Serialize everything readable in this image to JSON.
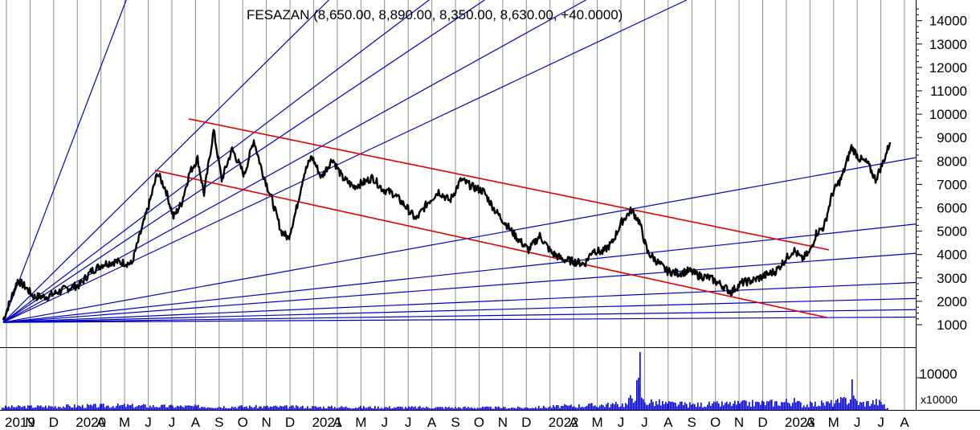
{
  "chart_data": {
    "type": "line",
    "title": "FESAZAN (8,650.00, 8,890.00, 8,350.00, 8,630.00, +40.0000)",
    "ylim": [
      0,
      14800
    ],
    "y_ticks": [
      1000,
      2000,
      3000,
      4000,
      5000,
      6000,
      7000,
      8000,
      9000,
      10000,
      11000,
      12000,
      13000,
      14000
    ],
    "volume_tick": "10000",
    "volume_multiplier": "x10000",
    "x_labels": [
      "2019",
      "N",
      "D",
      "2020",
      "A",
      "M",
      "J",
      "J",
      "A",
      "S",
      "O",
      "N",
      "D",
      "2021",
      "A",
      "M",
      "J",
      "J",
      "A",
      "S",
      "O",
      "N",
      "D",
      "2022",
      "A",
      "M",
      "J",
      "J",
      "A",
      "S",
      "O",
      "N",
      "D",
      "2023",
      "A",
      "M",
      "J",
      "J",
      "A"
    ],
    "grid": true,
    "price_keypoints": [
      [
        0,
        1200
      ],
      [
        18,
        2900
      ],
      [
        28,
        2600
      ],
      [
        38,
        2200
      ],
      [
        55,
        2200
      ],
      [
        75,
        2500
      ],
      [
        95,
        2700
      ],
      [
        110,
        3300
      ],
      [
        125,
        3600
      ],
      [
        140,
        3700
      ],
      [
        160,
        3600
      ],
      [
        170,
        4800
      ],
      [
        182,
        6200
      ],
      [
        192,
        7500
      ],
      [
        202,
        6800
      ],
      [
        212,
        5600
      ],
      [
        222,
        6200
      ],
      [
        232,
        7500
      ],
      [
        242,
        8100
      ],
      [
        250,
        6600
      ],
      [
        262,
        9300
      ],
      [
        272,
        7200
      ],
      [
        285,
        8500
      ],
      [
        300,
        7400
      ],
      [
        312,
        8900
      ],
      [
        322,
        7600
      ],
      [
        334,
        6400
      ],
      [
        346,
        5000
      ],
      [
        355,
        4700
      ],
      [
        364,
        5800
      ],
      [
        374,
        7400
      ],
      [
        384,
        8200
      ],
      [
        396,
        7300
      ],
      [
        410,
        8100
      ],
      [
        422,
        7300
      ],
      [
        436,
        6900
      ],
      [
        450,
        7100
      ],
      [
        460,
        7300
      ],
      [
        472,
        6800
      ],
      [
        486,
        6600
      ],
      [
        500,
        6100
      ],
      [
        514,
        5500
      ],
      [
        528,
        6200
      ],
      [
        542,
        6700
      ],
      [
        556,
        6300
      ],
      [
        570,
        7200
      ],
      [
        584,
        6900
      ],
      [
        598,
        6700
      ],
      [
        612,
        5900
      ],
      [
        626,
        5300
      ],
      [
        640,
        4700
      ],
      [
        654,
        4200
      ],
      [
        668,
        4800
      ],
      [
        682,
        4100
      ],
      [
        696,
        3800
      ],
      [
        710,
        3700
      ],
      [
        724,
        3600
      ],
      [
        734,
        4200
      ],
      [
        746,
        4100
      ],
      [
        758,
        4500
      ],
      [
        770,
        5400
      ],
      [
        782,
        5900
      ],
      [
        792,
        5400
      ],
      [
        802,
        4100
      ],
      [
        814,
        3700
      ],
      [
        826,
        3300
      ],
      [
        840,
        3200
      ],
      [
        854,
        3300
      ],
      [
        866,
        3100
      ],
      [
        880,
        3000
      ],
      [
        894,
        2700
      ],
      [
        906,
        2400
      ],
      [
        920,
        2800
      ],
      [
        934,
        2900
      ],
      [
        948,
        3100
      ],
      [
        962,
        3300
      ],
      [
        974,
        3800
      ],
      [
        984,
        4200
      ],
      [
        994,
        3800
      ],
      [
        1004,
        4100
      ],
      [
        1012,
        4900
      ],
      [
        1022,
        5200
      ],
      [
        1032,
        6600
      ],
      [
        1044,
        7300
      ],
      [
        1056,
        8600
      ],
      [
        1066,
        8100
      ],
      [
        1076,
        7900
      ],
      [
        1086,
        7200
      ],
      [
        1096,
        8000
      ],
      [
        1104,
        8800
      ]
    ],
    "volume_bars": [
      [
        0,
        4
      ],
      [
        150,
        6
      ],
      [
        200,
        5
      ],
      [
        400,
        4
      ],
      [
        650,
        3
      ],
      [
        780,
        8
      ],
      [
        795,
        35
      ],
      [
        800,
        12
      ],
      [
        825,
        9
      ],
      [
        860,
        7
      ],
      [
        965,
        10
      ],
      [
        985,
        12
      ],
      [
        1000,
        7
      ],
      [
        1040,
        10
      ],
      [
        1060,
        16
      ],
      [
        1070,
        9
      ],
      [
        1090,
        11
      ],
      [
        1100,
        8
      ]
    ],
    "channel_lines": [
      {
        "name": "upper",
        "from": [
          "2020-J",
          9800
        ],
        "to": [
          "2023-M",
          4200
        ]
      },
      {
        "name": "lower",
        "from": [
          "2020-A",
          7600
        ],
        "to": [
          "2023-A",
          1300
        ]
      }
    ],
    "fan_slopes": [
      9000,
      3400,
      2600,
      2300,
      1900,
      1620,
      620,
      370,
      260,
      150,
      90,
      48,
      20
    ]
  }
}
